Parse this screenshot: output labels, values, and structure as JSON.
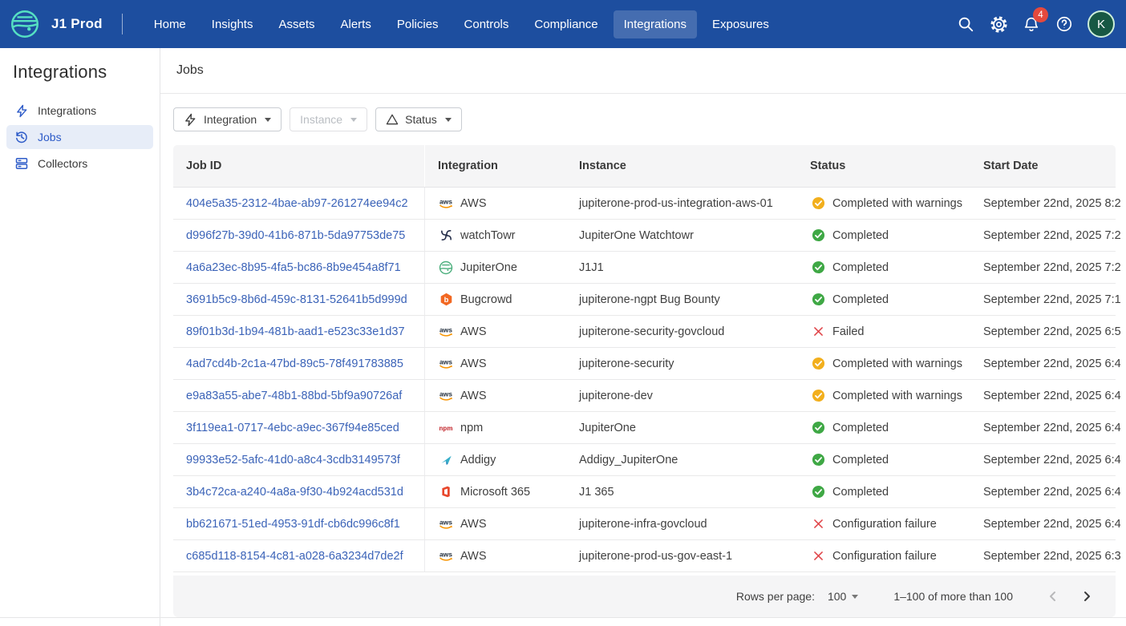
{
  "navbar": {
    "brand": "J1 Prod",
    "items": [
      {
        "label": "Home",
        "active": false
      },
      {
        "label": "Insights",
        "active": false
      },
      {
        "label": "Assets",
        "active": false
      },
      {
        "label": "Alerts",
        "active": false
      },
      {
        "label": "Policies",
        "active": false
      },
      {
        "label": "Controls",
        "active": false
      },
      {
        "label": "Compliance",
        "active": false
      },
      {
        "label": "Integrations",
        "active": true
      },
      {
        "label": "Exposures",
        "active": false
      }
    ],
    "right_icons": [
      "search-icon",
      "gear-icon",
      "bell-icon",
      "help-icon"
    ],
    "notification_count": "4",
    "avatar_initial": "K"
  },
  "sidebar": {
    "title": "Integrations",
    "items": [
      {
        "label": "Integrations",
        "icon": "lightning-icon",
        "selected": false
      },
      {
        "label": "Jobs",
        "icon": "history-icon",
        "selected": true
      },
      {
        "label": "Collectors",
        "icon": "collectors-icon",
        "selected": false
      }
    ]
  },
  "main": {
    "page_title": "Jobs",
    "filters": [
      {
        "label": "Integration",
        "icon": "lightning-icon",
        "enabled": true
      },
      {
        "label": "Instance",
        "icon": null,
        "enabled": false
      },
      {
        "label": "Status",
        "icon": "warning-triangle-icon",
        "enabled": true
      }
    ],
    "table": {
      "columns": [
        "Job ID",
        "Integration",
        "Instance",
        "Status",
        "Start Date"
      ],
      "rows": [
        {
          "job_id": "404e5a35-2312-4bae-ab97-261274ee94c2",
          "integration": "AWS",
          "integration_icon": "aws-icon",
          "instance": "jupiterone-prod-us-integration-aws-01",
          "status": "Completed with warnings",
          "status_kind": "warning",
          "start_date": "September 22nd, 2025 8:2"
        },
        {
          "job_id": "d996f27b-39d0-41b6-871b-5da97753de75",
          "integration": "watchTowr",
          "integration_icon": "watchtowr-icon",
          "instance": "JupiterOne Watchtowr",
          "status": "Completed",
          "status_kind": "success",
          "start_date": "September 22nd, 2025 7:2"
        },
        {
          "job_id": "4a6a23ec-8b95-4fa5-bc86-8b9e454a8f71",
          "integration": "JupiterOne",
          "integration_icon": "jupiterone-icon",
          "instance": "J1J1",
          "status": "Completed",
          "status_kind": "success",
          "start_date": "September 22nd, 2025 7:2"
        },
        {
          "job_id": "3691b5c9-8b6d-459c-8131-52641b5d999d",
          "integration": "Bugcrowd",
          "integration_icon": "bugcrowd-icon",
          "instance": "jupiterone-ngpt Bug Bounty",
          "status": "Completed",
          "status_kind": "success",
          "start_date": "September 22nd, 2025 7:1"
        },
        {
          "job_id": "89f01b3d-1b94-481b-aad1-e523c33e1d37",
          "integration": "AWS",
          "integration_icon": "aws-icon",
          "instance": "jupiterone-security-govcloud",
          "status": "Failed",
          "status_kind": "failed",
          "start_date": "September 22nd, 2025 6:5"
        },
        {
          "job_id": "4ad7cd4b-2c1a-47bd-89c5-78f491783885",
          "integration": "AWS",
          "integration_icon": "aws-icon",
          "instance": "jupiterone-security",
          "status": "Completed with warnings",
          "status_kind": "warning",
          "start_date": "September 22nd, 2025 6:4"
        },
        {
          "job_id": "e9a83a55-abe7-48b1-88bd-5bf9a90726af",
          "integration": "AWS",
          "integration_icon": "aws-icon",
          "instance": "jupiterone-dev",
          "status": "Completed with warnings",
          "status_kind": "warning",
          "start_date": "September 22nd, 2025 6:4"
        },
        {
          "job_id": "3f119ea1-0717-4ebc-a9ec-367f94e85ced",
          "integration": "npm",
          "integration_icon": "npm-icon",
          "instance": "JupiterOne",
          "status": "Completed",
          "status_kind": "success",
          "start_date": "September 22nd, 2025 6:4"
        },
        {
          "job_id": "99933e52-5afc-41d0-a8c4-3cdb3149573f",
          "integration": "Addigy",
          "integration_icon": "addigy-icon",
          "instance": "Addigy_JupiterOne",
          "status": "Completed",
          "status_kind": "success",
          "start_date": "September 22nd, 2025 6:4"
        },
        {
          "job_id": "3b4c72ca-a240-4a8a-9f30-4b924acd531d",
          "integration": "Microsoft 365",
          "integration_icon": "microsoft365-icon",
          "instance": "J1 365",
          "status": "Completed",
          "status_kind": "success",
          "start_date": "September 22nd, 2025 6:4"
        },
        {
          "job_id": "bb621671-51ed-4953-91df-cb6dc996c8f1",
          "integration": "AWS",
          "integration_icon": "aws-icon",
          "instance": "jupiterone-infra-govcloud",
          "status": "Configuration failure",
          "status_kind": "failed",
          "start_date": "September 22nd, 2025 6:4"
        },
        {
          "job_id": "c685d118-8154-4c81-a028-6a3234d7de2f",
          "integration": "AWS",
          "integration_icon": "aws-icon",
          "instance": "jupiterone-prod-us-gov-east-1",
          "status": "Configuration failure",
          "status_kind": "failed",
          "start_date": "September 22nd, 2025 6:3"
        }
      ],
      "pagination": {
        "rows_per_page_label": "Rows per page:",
        "rows_per_page_value": "100",
        "range_label": "1–100 of more than 100"
      }
    }
  },
  "colors": {
    "navbar_bg": "#1d4e9f",
    "logo_teal": "#55e0c2",
    "badge_red": "#e5493d",
    "sidebar_accent_blue": "#2d5bc8",
    "link_blue": "#3b63b8",
    "status_success_green": "#3fa845",
    "status_warning_yellow": "#f2af1d",
    "status_failed_red": "#e0474b",
    "header_footer_gray": "#f5f5f6"
  }
}
